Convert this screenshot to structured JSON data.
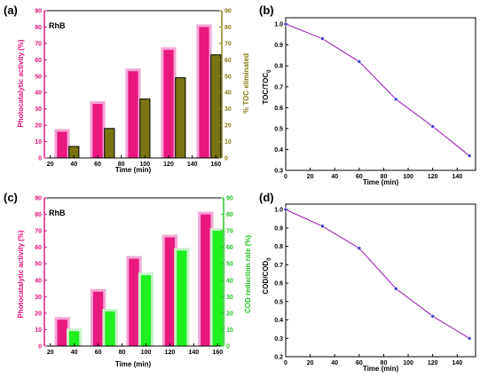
{
  "colors": {
    "photo_bar": "#e8187f",
    "photo_shadow": "#f3a6d6",
    "toc_bar": "#7a7413",
    "cod_bar": "#1ff01f",
    "cod_shadow": "#c9f2c9",
    "line": "#a336b8",
    "marker": "#4040c8",
    "photo_axis": "#e0107a",
    "toc_axis": "#857b10",
    "cod_axis": "#1fc21f"
  },
  "chart_data": [
    {
      "id": "a",
      "panel_label": "(a)",
      "type": "bar",
      "inner_label": "RhB",
      "xlabel": "Time (min)",
      "x_ticks": [
        "20",
        "40",
        "60",
        "80",
        "100",
        "120",
        "140",
        "160"
      ],
      "xlim": [
        15,
        165
      ],
      "series": [
        {
          "name": "Photocatalytic activity (%)",
          "axis": "left",
          "x": [
            30,
            60,
            90,
            120,
            150
          ],
          "values": [
            16,
            33,
            53,
            66,
            80
          ]
        },
        {
          "name": "% TOC eliminated",
          "axis": "right",
          "x": [
            40,
            70,
            100,
            130,
            160
          ],
          "values": [
            7,
            18,
            36,
            49,
            63
          ]
        }
      ],
      "ylabel_left": "Photocatalytic activity (%)",
      "ylabel_right": "% TOC eliminated",
      "ylim": [
        0,
        90
      ],
      "y_ticks": [
        "0",
        "10",
        "20",
        "30",
        "40",
        "50",
        "60",
        "70",
        "80",
        "90"
      ]
    },
    {
      "id": "b",
      "panel_label": "(b)",
      "type": "line",
      "xlabel": "Time (min)",
      "ylabel": "TOC/TOC",
      "ylabel_subscript": "0",
      "x": [
        0,
        30,
        60,
        90,
        120,
        150
      ],
      "y": [
        1.0,
        0.93,
        0.82,
        0.64,
        0.51,
        0.37
      ],
      "xlim": [
        0,
        155
      ],
      "ylim": [
        0.3,
        1.03
      ],
      "x_ticks": [
        "0",
        "20",
        "40",
        "60",
        "80",
        "100",
        "120",
        "140"
      ],
      "y_ticks": [
        "0.3",
        "0.4",
        "0.5",
        "0.6",
        "0.7",
        "0.8",
        "0.9",
        "1.0"
      ]
    },
    {
      "id": "c",
      "panel_label": "(c)",
      "type": "bar",
      "inner_label": "RhB",
      "xlabel": "Time (min)",
      "x_ticks": [
        "20",
        "40",
        "60",
        "80",
        "100",
        "120",
        "140",
        "160"
      ],
      "xlim": [
        15,
        165
      ],
      "series": [
        {
          "name": "Photocatalytic activity (%)",
          "axis": "left",
          "x": [
            30,
            60,
            90,
            120,
            150
          ],
          "values": [
            16,
            33,
            53,
            66,
            80
          ]
        },
        {
          "name": "COD reduction rate (%)",
          "axis": "right",
          "x": [
            40,
            70,
            100,
            130,
            160
          ],
          "values": [
            9,
            21,
            43,
            58,
            70
          ]
        }
      ],
      "ylabel_left": "Photocatalytic activity (%)",
      "ylabel_right": "COD reduction rate (%)",
      "ylim": [
        0,
        90
      ],
      "y_ticks": [
        "0",
        "10",
        "20",
        "30",
        "40",
        "50",
        "60",
        "70",
        "80",
        "90"
      ]
    },
    {
      "id": "d",
      "panel_label": "(d)",
      "type": "line",
      "xlabel": "Time (min)",
      "ylabel": "COD/COD",
      "ylabel_subscript": "0",
      "x": [
        0,
        30,
        60,
        90,
        120,
        150
      ],
      "y": [
        1.0,
        0.91,
        0.79,
        0.57,
        0.42,
        0.3
      ],
      "xlim": [
        0,
        155
      ],
      "ylim": [
        0.2,
        1.03
      ],
      "x_ticks": [
        "0",
        "20",
        "40",
        "60",
        "80",
        "100",
        "120",
        "140"
      ],
      "y_ticks": [
        "0.2",
        "0.3",
        "0.4",
        "0.5",
        "0.6",
        "0.7",
        "0.8",
        "0.9",
        "1.0"
      ]
    }
  ]
}
